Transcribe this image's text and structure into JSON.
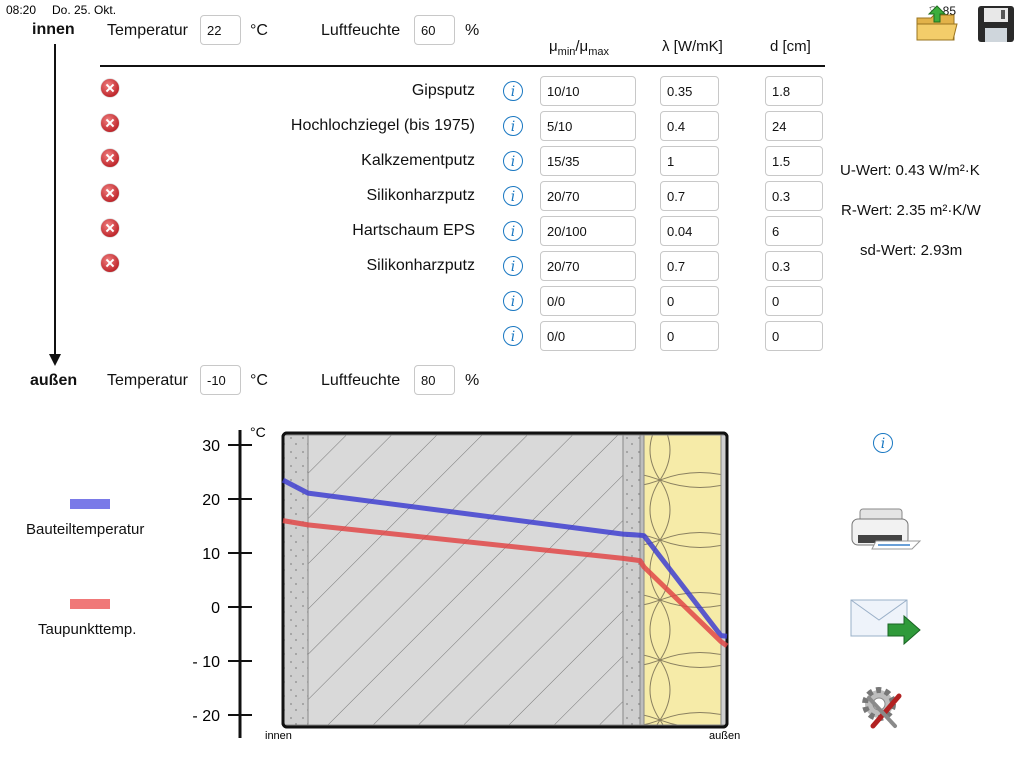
{
  "status": {
    "time": "08:20",
    "date": "Do. 25. Okt.",
    "battery": "85"
  },
  "inner": {
    "label": "innen",
    "temp_label": "Temperatur",
    "temp_value": "22",
    "temp_unit": "°C",
    "humidity_label": "Luftfeuchte",
    "humidity_value": "60",
    "humidity_unit": "%"
  },
  "outer": {
    "label": "außen",
    "temp_label": "Temperatur",
    "temp_value": "-10",
    "temp_unit": "°C",
    "humidity_label": "Luftfeuchte",
    "humidity_value": "80",
    "humidity_unit": "%"
  },
  "columns": {
    "mu": "μ",
    "mu_min": "min",
    "mu_sep": "/μ",
    "mu_max": "max",
    "lambda": "λ [W/mK]",
    "d": "d [cm]"
  },
  "layers": [
    {
      "name": "Gipsputz",
      "mu": "10/10",
      "lambda": "0.35",
      "d": "1.8"
    },
    {
      "name": "Hochlochziegel (bis 1975)",
      "mu": "5/10",
      "lambda": "0.4",
      "d": "24"
    },
    {
      "name": "Kalkzementputz",
      "mu": "15/35",
      "lambda": "1",
      "d": "1.5"
    },
    {
      "name": "Silikonharzputz",
      "mu": "20/70",
      "lambda": "0.7",
      "d": "0.3"
    },
    {
      "name": "Hartschaum EPS",
      "mu": "20/100",
      "lambda": "0.04",
      "d": "6"
    },
    {
      "name": "Silikonharzputz",
      "mu": "20/70",
      "lambda": "0.7",
      "d": "0.3"
    },
    {
      "name": "",
      "mu": "0/0",
      "lambda": "0",
      "d": "0"
    },
    {
      "name": "",
      "mu": "0/0",
      "lambda": "0",
      "d": "0"
    }
  ],
  "results": {
    "u": "U-Wert: 0.43 W/m²·K",
    "r": "R-Wert: 2.35 m²·K/W",
    "sd": "sd-Wert: 2.93m"
  },
  "legend": {
    "component": "Bauteiltemperatur",
    "dewpoint": "Taupunkttemp."
  },
  "colors": {
    "component": "#4040d0",
    "dewpoint": "#e04848",
    "legend_component": "#7a7ae8",
    "legend_dewpoint": "#f07878",
    "info": "#1a78c2"
  },
  "icons": {
    "open": "folder-open-icon",
    "save": "floppy-disk-icon",
    "print": "printer-icon",
    "mail": "mail-send-icon",
    "settings": "gear-wrench-icon",
    "info": "info-icon",
    "delete": "delete-icon"
  },
  "chart_data": {
    "type": "line",
    "ylabel": "°C",
    "yticks": [
      "30",
      "20",
      "10",
      "0",
      "- 10",
      "- 20"
    ],
    "ytick_values": [
      30,
      20,
      10,
      0,
      -10,
      -20
    ],
    "ylim": [
      -22,
      33
    ],
    "x_left_label": "innen",
    "x_right_label": "außen",
    "layer_bounds": [
      0,
      1.8,
      25.8,
      27.3,
      27.6,
      33.6,
      33.9
    ],
    "series": [
      {
        "name": "Bauteiltemperatur",
        "x": [
          0,
          1.8,
          25.8,
          27.3,
          27.6,
          33.6,
          33.9
        ],
        "y": [
          23.5,
          21.1,
          13.5,
          13.3,
          13.2,
          -5.3,
          -5.4
        ]
      },
      {
        "name": "Taupunkttemp.",
        "x": [
          0,
          1.8,
          25.8,
          27.3,
          27.6,
          33.6,
          33.9
        ],
        "y": [
          16.0,
          15.2,
          9.0,
          8.6,
          7.4,
          -6.4,
          -7.2
        ]
      }
    ]
  }
}
